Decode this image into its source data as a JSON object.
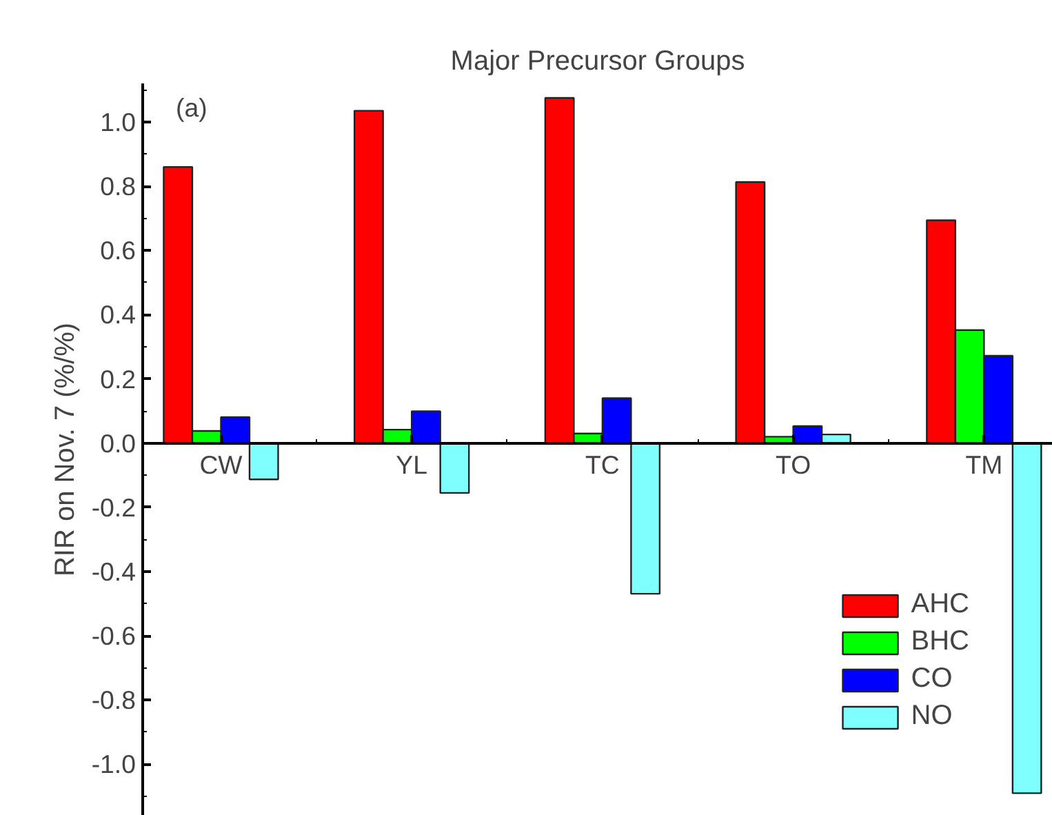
{
  "chart_data": {
    "type": "bar",
    "title": "Major Precursor Groups",
    "ylabel": "RIR on Nov. 7 (%/%)",
    "annotations": [
      "(a)"
    ],
    "categories": [
      "CW",
      "YL",
      "TC",
      "TO",
      "TM"
    ],
    "series": [
      {
        "name": "AHC",
        "color": "#ff0000",
        "values": [
          0.86,
          1.035,
          1.075,
          0.813,
          0.694
        ]
      },
      {
        "name": "BHC",
        "color": "#00ff00",
        "values": [
          0.038,
          0.042,
          0.03,
          0.02,
          0.352
        ]
      },
      {
        "name": "CO",
        "color": "#0000ff",
        "values": [
          0.081,
          0.099,
          0.14,
          0.053,
          0.272
        ]
      },
      {
        "name": "NO",
        "color": "#80ffff",
        "values": [
          -0.113,
          -0.155,
          -0.469,
          0.027,
          -1.09
        ]
      }
    ],
    "ylim": [
      -1.16,
      1.12
    ],
    "yticks": [
      {
        "value": -1.0,
        "label": "-1.0"
      },
      {
        "value": -0.8,
        "label": "-0.8"
      },
      {
        "value": -0.6,
        "label": "-0.6"
      },
      {
        "value": -0.4,
        "label": "-0.4"
      },
      {
        "value": -0.2,
        "label": "-0.2"
      },
      {
        "value": 0,
        "label": "0.0"
      },
      {
        "value": 0.2,
        "label": "0.2"
      },
      {
        "value": 0.4,
        "label": "0.4"
      },
      {
        "value": 0.6,
        "label": "0.6"
      },
      {
        "value": 0.8,
        "label": "0.8"
      },
      {
        "value": 1.0,
        "label": "1.0"
      }
    ],
    "grid": false,
    "legend": "bottom right"
  }
}
